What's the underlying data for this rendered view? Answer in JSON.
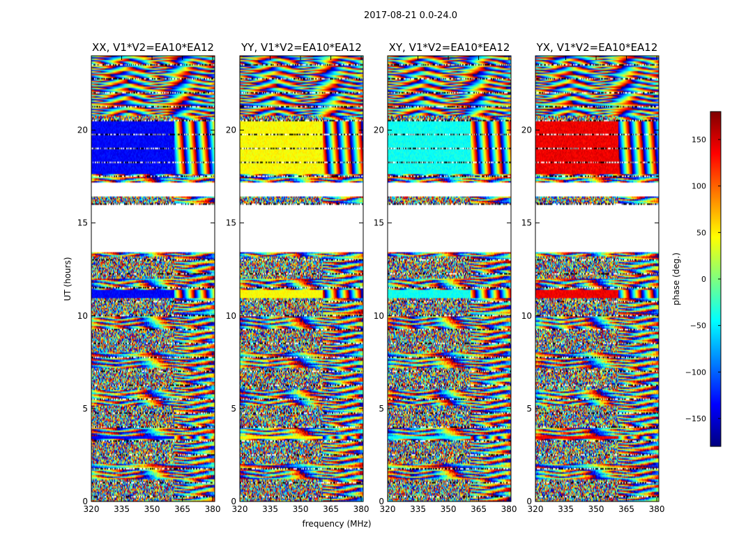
{
  "chart_data": {
    "type": "heatmap",
    "suptitle": "2017-08-21 0.0-24.0",
    "xlabel": "frequency (MHz)",
    "ylabel": "UT (hours)",
    "xlim": [
      320,
      381
    ],
    "ylim": [
      0,
      24
    ],
    "x_ticks": [
      320,
      335,
      350,
      365,
      380
    ],
    "y_ticks": [
      0,
      5,
      10,
      15,
      20
    ],
    "colorbar": {
      "label": "phase (deg.)",
      "range": [
        -180,
        180
      ],
      "ticks": [
        150,
        100,
        50,
        0,
        -50,
        -100,
        -150
      ],
      "tick_labels": [
        "150",
        "100",
        "50",
        "0",
        "−50",
        "−100",
        "−150"
      ],
      "colormap": [
        "#00007f",
        "#0000ff",
        "#007fff",
        "#00ffff",
        "#7fff7f",
        "#ffff00",
        "#ff7f00",
        "#ff0000",
        "#7f0000"
      ]
    },
    "panels": [
      {
        "title": "XX, V1*V2=EA10*EA12",
        "phase_offset_deg": -135
      },
      {
        "title": "YY, V1*V2=EA10*EA12",
        "phase_offset_deg": 45
      },
      {
        "title": "XY, V1*V2=EA10*EA12",
        "phase_offset_deg": -40
      },
      {
        "title": "YX, V1*V2=EA10*EA12",
        "phase_offset_deg": 140
      }
    ],
    "flagged_gaps_hours": [
      [
        15.0,
        16.0
      ],
      [
        16.4,
        17.2
      ],
      [
        13.4,
        15.0
      ]
    ],
    "calibrator_scan_hours": [
      17.6,
      20.5
    ],
    "calibrator_scan_2_hours": [
      10.95,
      11.4
    ],
    "calibrator_scan_3_hours": [
      3.35,
      3.55
    ],
    "wrap_onset_mhz": 361
  }
}
